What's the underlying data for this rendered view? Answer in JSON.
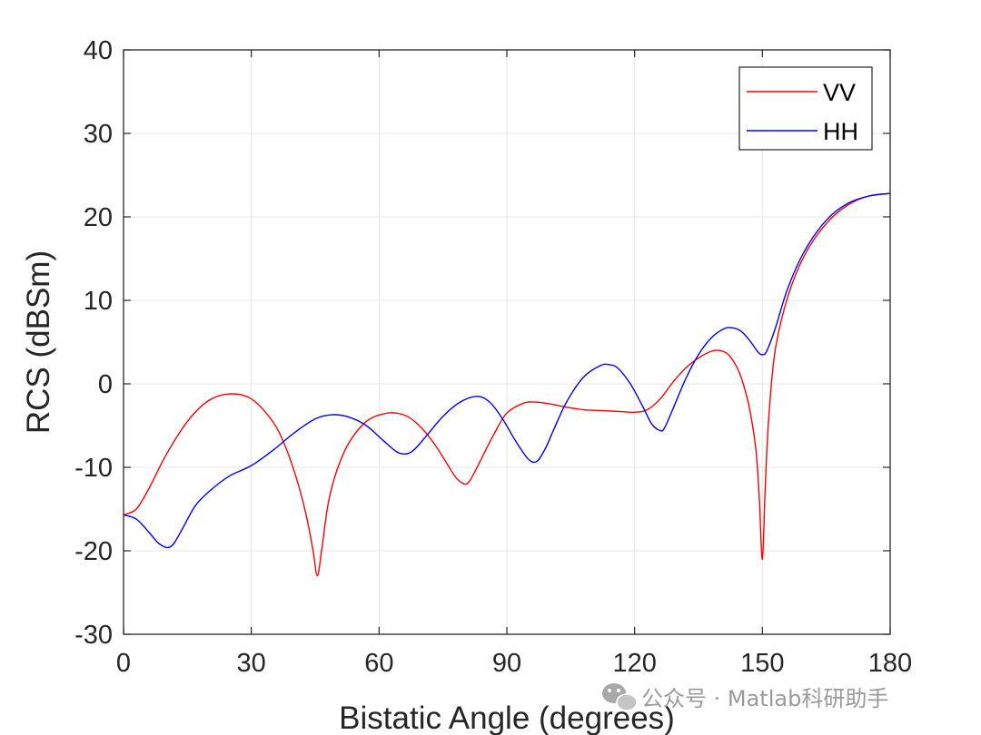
{
  "chart_data": {
    "type": "line",
    "title": "",
    "xlabel": "Bistatic Angle (degrees)",
    "ylabel": "RCS (dBSm)",
    "xlim": [
      0,
      180
    ],
    "ylim": [
      -30,
      40
    ],
    "xticks": [
      0,
      30,
      60,
      90,
      120,
      150,
      180
    ],
    "yticks": [
      -30,
      -20,
      -10,
      0,
      10,
      20,
      30,
      40
    ],
    "grid": true,
    "legend_position": "top-right",
    "series": [
      {
        "name": "VV",
        "color": "#ff0000",
        "x": [
          0,
          3,
          6,
          10,
          15,
          20,
          25,
          30,
          35,
          38,
          41,
          43,
          44.5,
          45.5,
          46.5,
          48,
          50,
          53,
          57,
          61,
          64,
          67,
          70,
          73,
          76,
          78,
          80,
          81,
          82,
          84,
          87,
          90,
          94,
          97,
          100,
          104,
          108,
          112,
          116,
          120,
          123,
          126,
          129,
          132,
          135,
          138,
          140,
          142,
          144,
          145.5,
          147,
          148.5,
          149.3,
          150,
          150.7,
          151.5,
          153,
          156,
          160,
          165,
          170,
          175,
          180
        ],
        "y": [
          -15.7,
          -15,
          -12.5,
          -8.5,
          -4.5,
          -2,
          -1.2,
          -1.8,
          -4.5,
          -7.5,
          -12,
          -16,
          -20,
          -23,
          -20,
          -14.5,
          -10.5,
          -7,
          -4.5,
          -3.6,
          -3.5,
          -4,
          -5.3,
          -7.2,
          -9.6,
          -11.2,
          -12,
          -11.8,
          -11,
          -9,
          -6,
          -3.5,
          -2.3,
          -2.2,
          -2.4,
          -2.8,
          -3.1,
          -3.2,
          -3.3,
          -3.4,
          -3.1,
          -1.8,
          0.2,
          1.9,
          3.1,
          3.9,
          4,
          3.5,
          2,
          0,
          -3,
          -8,
          -14,
          -21,
          -12,
          -4,
          4,
          10.5,
          15.5,
          19.2,
          21.4,
          22.5,
          22.8
        ]
      },
      {
        "name": "HH",
        "color": "#0000ff",
        "x": [
          0,
          3,
          6,
          8,
          10,
          11,
          12,
          14,
          17,
          21,
          25,
          30,
          35,
          40,
          45,
          49,
          53,
          57,
          61,
          64,
          66,
          68,
          71,
          75,
          79,
          83,
          86,
          89,
          92,
          95,
          97,
          99,
          101,
          104,
          108,
          112,
          114,
          116,
          119,
          122,
          124,
          126,
          127,
          129,
          132,
          135,
          138,
          141,
          143,
          145,
          147,
          149,
          150,
          151,
          153,
          156,
          160,
          165,
          170,
          175,
          180
        ],
        "y": [
          -15.7,
          -16.2,
          -17.8,
          -19,
          -19.6,
          -19.5,
          -19,
          -17.2,
          -14.5,
          -12.5,
          -11,
          -9.8,
          -8,
          -5.9,
          -4.2,
          -3.7,
          -4,
          -5,
          -6.8,
          -8.1,
          -8.4,
          -8,
          -6.3,
          -3.9,
          -2.2,
          -1.5,
          -2.2,
          -4.2,
          -6.8,
          -9,
          -9.3,
          -7.8,
          -5.5,
          -2.2,
          0.8,
          2.2,
          2.3,
          1.9,
          0,
          -2.8,
          -4.8,
          -5.6,
          -5.3,
          -3,
          0.6,
          3.5,
          5.5,
          6.6,
          6.7,
          6.3,
          5.2,
          3.8,
          3.5,
          3.9,
          6.6,
          11.5,
          16,
          19.6,
          21.6,
          22.5,
          22.8
        ]
      }
    ]
  },
  "watermark": {
    "text": "公众号 · Matlab科研助手"
  }
}
